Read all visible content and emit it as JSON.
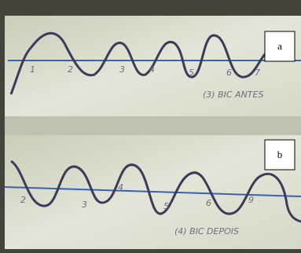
{
  "panels": [
    {
      "label": "a",
      "caption": "(3) BIC ANTES",
      "numbers": [
        "1",
        "2",
        "3",
        "4",
        "5",
        "6",
        "7"
      ]
    },
    {
      "label": "b",
      "caption": "(4) BIC DEPOIS",
      "numbers": [
        "2",
        "3",
        "4",
        "5",
        "6",
        "9"
      ]
    }
  ]
}
